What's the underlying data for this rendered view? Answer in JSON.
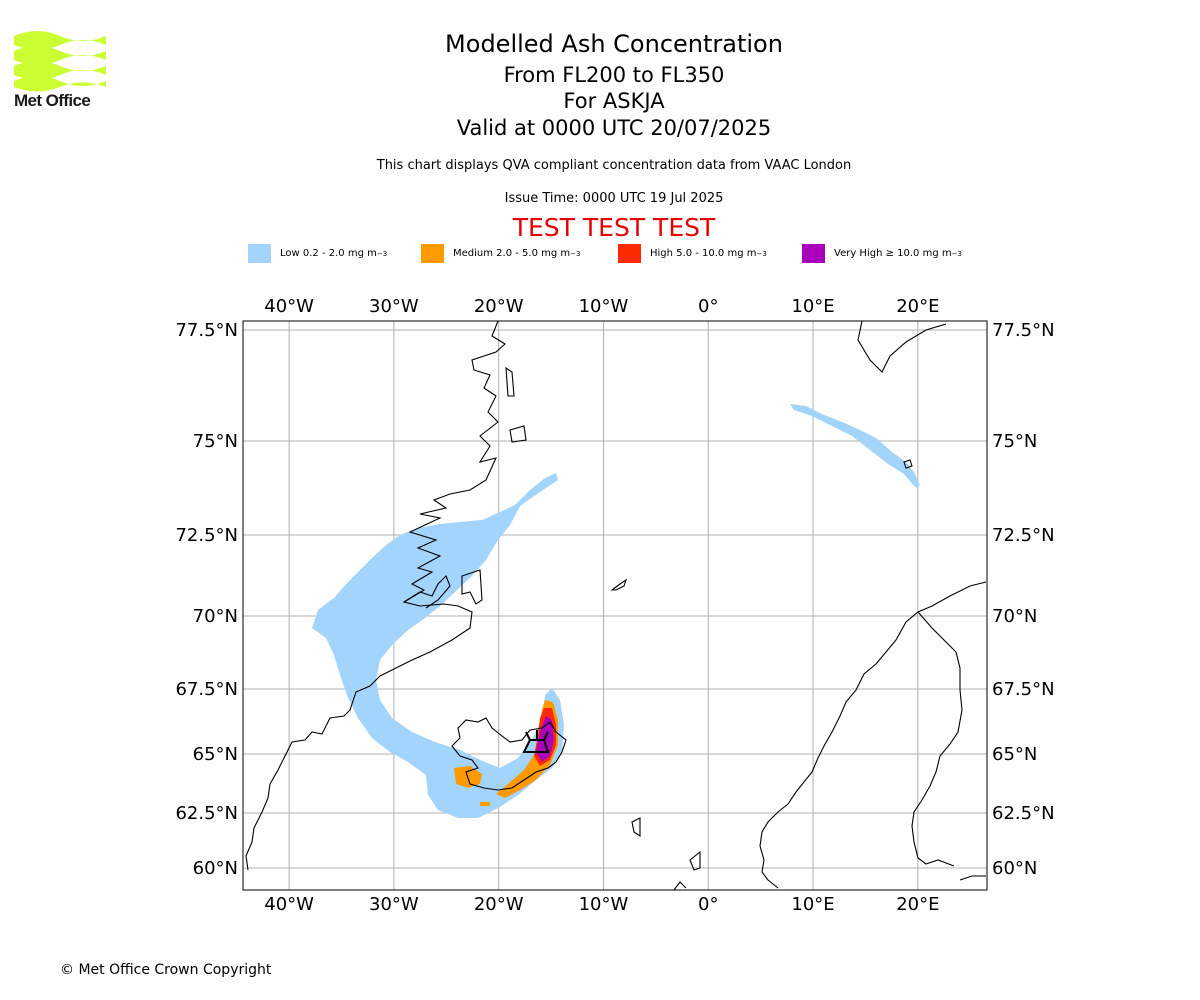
{
  "logo": {
    "text": "Met Office",
    "color": "#ccff33"
  },
  "header": {
    "title": "Modelled Ash Concentration",
    "levels": "From FL200 to FL350",
    "volcano": "For ASKJA",
    "valid": "Valid at 0000 UTC 20/07/2025",
    "description": "This chart displays QVA compliant concentration data from VAAC London",
    "issue": "Issue Time: 0000 UTC 19 Jul 2025",
    "test_banner": "TEST TEST TEST"
  },
  "legend": [
    {
      "label": "Low 0.2 - 2.0 mg m",
      "unit_exp": "−3",
      "color": "#a3d4fc"
    },
    {
      "label": "Medium 2.0 - 5.0 mg m",
      "unit_exp": "−3",
      "color": "#ff9900"
    },
    {
      "label": "High 5.0 - 10.0 mg m",
      "unit_exp": "−3",
      "color": "#ff2a00"
    },
    {
      "label": "Very High  ≥  10.0 mg m",
      "unit_exp": "−3",
      "color": "#aa00bb"
    }
  ],
  "map": {
    "lon_range": [
      -44.4,
      26.6
    ],
    "lat_range": [
      59.3,
      77.7
    ],
    "lon_ticks": [
      {
        "value": -40,
        "label": "40°W"
      },
      {
        "value": -30,
        "label": "30°W"
      },
      {
        "value": -20,
        "label": "20°W"
      },
      {
        "value": -10,
        "label": "10°W"
      },
      {
        "value": 0,
        "label": "0°"
      },
      {
        "value": 10,
        "label": "10°E"
      },
      {
        "value": 20,
        "label": "20°E"
      }
    ],
    "lat_ticks": [
      {
        "value": 77.5,
        "label": "77.5°N"
      },
      {
        "value": 75,
        "label": "75°N"
      },
      {
        "value": 72.5,
        "label": "72.5°N"
      },
      {
        "value": 70,
        "label": "70°N"
      },
      {
        "value": 67.5,
        "label": "67.5°N"
      },
      {
        "value": 65,
        "label": "65°N"
      },
      {
        "value": 62.5,
        "label": "62.5°N"
      },
      {
        "value": 60,
        "label": "60°N"
      }
    ],
    "grid": true,
    "volcano": {
      "name": "ASKJA",
      "lon": -16.7,
      "lat": 65.0
    }
  },
  "footer": {
    "copyright": "© Met Office Crown Copyright"
  }
}
